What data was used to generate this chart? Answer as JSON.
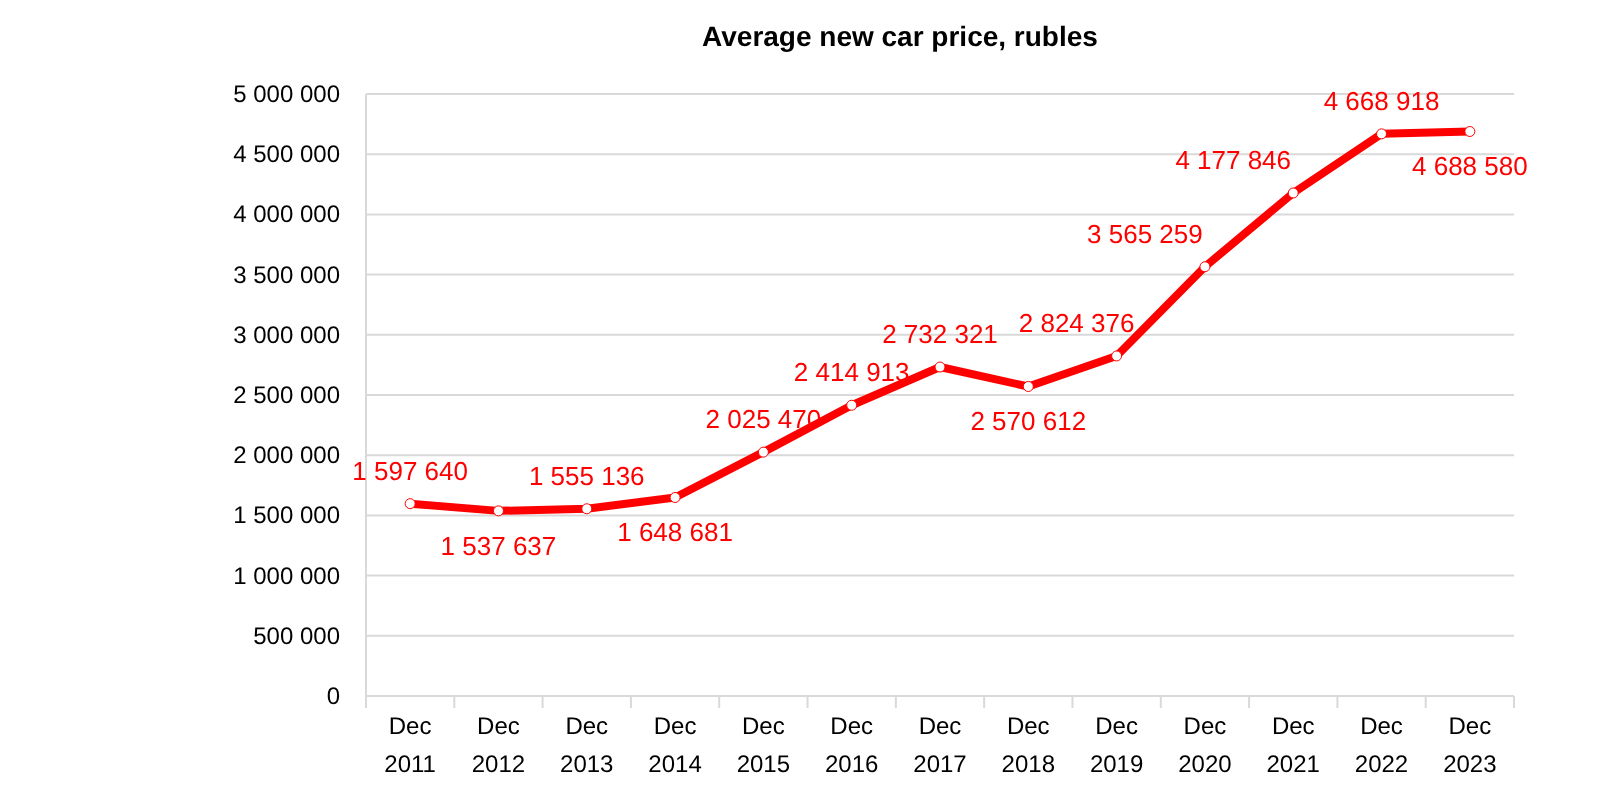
{
  "chart_data": {
    "type": "line",
    "title": "Average new car price, rubles",
    "categories": [
      "Dec 2011",
      "Dec 2012",
      "Dec 2013",
      "Dec 2014",
      "Dec 2015",
      "Dec 2016",
      "Dec 2017",
      "Dec 2018",
      "Dec 2019",
      "Dec 2020",
      "Dec 2021",
      "Dec 2022",
      "Dec 2023"
    ],
    "series": [
      {
        "color": "#ff0000",
        "values": [
          1597640,
          1537637,
          1555136,
          1648681,
          2025470,
          2414913,
          2732321,
          2570612,
          2824376,
          3565259,
          4177846,
          4668918,
          4688580
        ],
        "value_labels": [
          "1 597 640",
          "1 537 637",
          "1 555 136",
          "1 648 681",
          "2 025 470",
          "2 414 913",
          "2 732 321",
          "2 570 612",
          "2 824 376",
          "3 565 259",
          "4 177 846",
          "4 668 918",
          "4 688 580"
        ]
      }
    ],
    "ylim": [
      0,
      5000000
    ],
    "yticks": [
      {
        "value": 0,
        "label": "0"
      },
      {
        "value": 500000,
        "label": "500 000"
      },
      {
        "value": 1000000,
        "label": "1 000 000"
      },
      {
        "value": 1500000,
        "label": "1 500 000"
      },
      {
        "value": 2000000,
        "label": "2 000 000"
      },
      {
        "value": 2500000,
        "label": "2 500 000"
      },
      {
        "value": 3000000,
        "label": "3 000 000"
      },
      {
        "value": 3500000,
        "label": "3 500 000"
      },
      {
        "value": 4000000,
        "label": "4 000 000"
      },
      {
        "value": 4500000,
        "label": "4 500 000"
      },
      {
        "value": 5000000,
        "label": "5 000 000"
      }
    ],
    "grid": "y",
    "marker": "circle",
    "line_style": "solid"
  }
}
